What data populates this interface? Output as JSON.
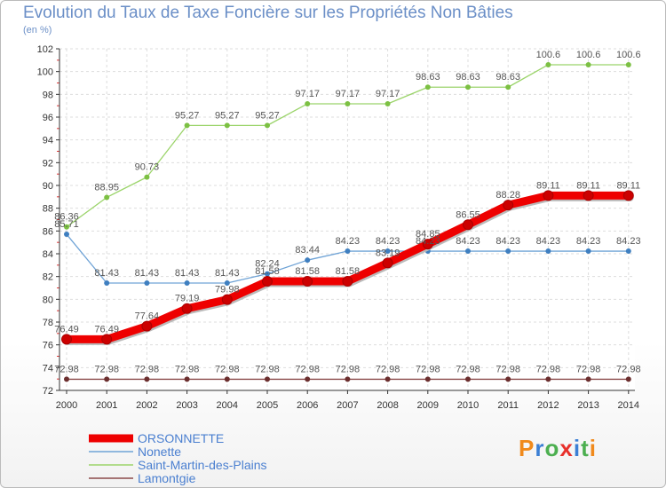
{
  "title": "Evolution du Taux de Taxe Foncière sur les Propriétés Non Bâties",
  "unit_label": "(en %)",
  "logo_text": "Proxiti",
  "logo_letter_colors": [
    "#f08a1c",
    "#3b7fd4",
    "#4caf50",
    "#e8302b",
    "#3b7fd4",
    "#4caf50",
    "#f08a1c"
  ],
  "chart_data": {
    "type": "line",
    "x": [
      "2000",
      "2001",
      "2002",
      "2003",
      "2004",
      "2005",
      "2006",
      "2007",
      "2008",
      "2009",
      "2010",
      "2011",
      "2012",
      "2013",
      "2014"
    ],
    "ylim": [
      72,
      102
    ],
    "yticks": [
      72,
      74,
      76,
      78,
      80,
      82,
      84,
      86,
      88,
      90,
      92,
      94,
      96,
      98,
      100,
      102
    ],
    "grid": true,
    "series": [
      {
        "name": "ORSONNETTE",
        "color": "#ee0000",
        "marker": "#cc0000",
        "width": 9,
        "values": [
          76.49,
          76.49,
          77.64,
          79.19,
          79.98,
          81.58,
          81.58,
          81.58,
          83.19,
          84.85,
          86.55,
          88.28,
          89.11,
          89.11,
          89.11
        ],
        "labels": [
          "76.49",
          "76.49",
          "77.64",
          "79.19",
          "79.98",
          "81.58",
          "81.58",
          "81.58",
          "83.19",
          "84.85",
          "86.55",
          "88.28",
          "89.11",
          "89.11",
          "89.11"
        ]
      },
      {
        "name": "Nonette",
        "color": "#6fa3d6",
        "marker": "#3f7fc0",
        "width": 1.3,
        "values": [
          85.71,
          81.43,
          81.43,
          81.43,
          81.43,
          82.24,
          83.44,
          84.23,
          84.23,
          84.23,
          84.23,
          84.23,
          84.23,
          84.23,
          84.23
        ],
        "labels": [
          "85.71",
          "81.43",
          "81.43",
          "81.43",
          "81.43",
          "82.24",
          "83.44",
          "84.23",
          "84.23",
          "84.23",
          "84.23",
          "84.23",
          "84.23",
          "84.23",
          "84.23"
        ]
      },
      {
        "name": "Saint-Martin-des-Plains",
        "color": "#9bd46a",
        "marker": "#7cc043",
        "width": 1.3,
        "values": [
          86.36,
          88.95,
          90.73,
          95.27,
          95.27,
          95.27,
          97.17,
          97.17,
          97.17,
          98.63,
          98.63,
          98.63,
          100.6,
          100.6,
          100.6
        ],
        "labels": [
          "86.36",
          "88.95",
          "90.73",
          "95.27",
          "95.27",
          "95.27",
          "97.17",
          "97.17",
          "97.17",
          "98.63",
          "98.63",
          "98.63",
          "100.6",
          "100.6",
          "100.6"
        ]
      },
      {
        "name": "Lamontgie",
        "color": "#8b4a4a",
        "marker": "#6b2e2e",
        "width": 1.3,
        "values": [
          72.98,
          72.98,
          72.98,
          72.98,
          72.98,
          72.98,
          72.98,
          72.98,
          72.98,
          72.98,
          72.98,
          72.98,
          72.98,
          72.98,
          72.98
        ],
        "labels": [
          "72.98",
          "72.98",
          "72.98",
          "72.98",
          "72.98",
          "72.98",
          "72.98",
          "72.98",
          "72.98",
          "72.98",
          "72.98",
          "72.98",
          "72.98",
          "72.98",
          "72.98"
        ]
      }
    ],
    "legend": {
      "placement": "bottom-left"
    }
  }
}
